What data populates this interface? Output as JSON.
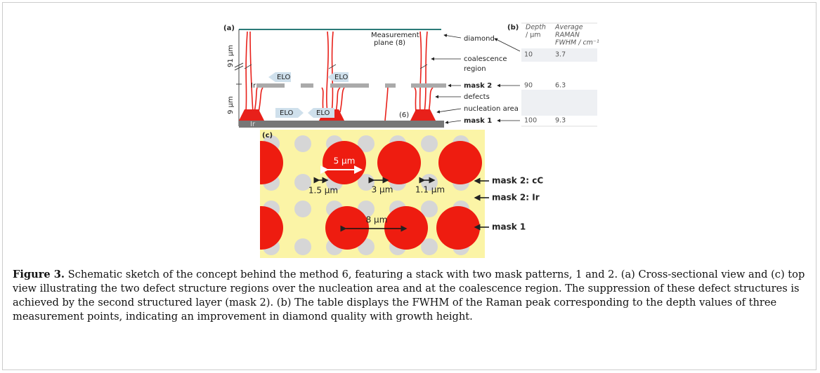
{
  "figure": {
    "panel_a": {
      "label": "(a)",
      "measurement_plane": [
        "Measurement",
        "plane (8)"
      ],
      "scale_top": "91 µm",
      "scale_bottom": "9 µm",
      "ir_mask": "Ir",
      "ir_substrate": "Ir",
      "elo": [
        "ELO",
        "ELO",
        "ELO",
        "ELO"
      ],
      "method": "(6)",
      "labels": {
        "diamond": "diamond",
        "coalescence": [
          "coalescence",
          "region"
        ],
        "mask2": "mask 2",
        "defects": "defects",
        "nucleation": "nucleation area",
        "mask1": "mask 1"
      }
    },
    "table_b": {
      "label": "(b)",
      "header_depth": [
        "Depth",
        "/ µm"
      ],
      "header_fwhm": [
        "Average",
        "RAMAN",
        "FWHM / cm⁻¹"
      ],
      "rows": [
        [
          "10",
          "3.7"
        ],
        [
          "90",
          "6.3"
        ],
        [
          "100",
          "9.3"
        ]
      ]
    },
    "panel_c": {
      "label": "(c)",
      "dims": {
        "d5": "5 µm",
        "d15": "1.5 µm",
        "d3": "3 µm",
        "d11": "1.1 µm",
        "d8": "8 µm"
      },
      "labels": {
        "mask2_cc": "mask 2: cC",
        "mask2_ir": "mask 2: Ir",
        "mask1": "mask 1"
      }
    },
    "caption": {
      "label": "Figure 3.",
      "text": " Schematic sketch of the concept behind the method 6, featuring a stack with two mask patterns, 1 and 2. (a) Cross-sectional view and (c) top view illustrating the two defect structure regions over the nucleation area and at the coalescence region. The suppression of these defect structures is achieved by the second structured layer (mask 2). (b) The table displays the FWHM of the Raman peak corresponding to the depth values of three measurement points, indicating an improvement in diamond quality with growth height."
    }
  }
}
